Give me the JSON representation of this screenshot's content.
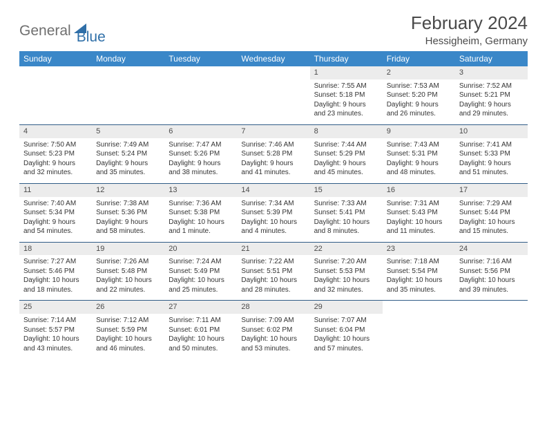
{
  "brand": {
    "part1": "General",
    "part2": "Blue"
  },
  "title": {
    "month": "February 2024",
    "location": "Hessigheim, Germany"
  },
  "colors": {
    "header_bg": "#3a87c8",
    "row_border": "#2f5b86",
    "daynum_bg": "#ececec",
    "text": "#333333",
    "brand_gray": "#6f6f6f",
    "brand_blue": "#2f6fa8"
  },
  "weekdays": [
    "Sunday",
    "Monday",
    "Tuesday",
    "Wednesday",
    "Thursday",
    "Friday",
    "Saturday"
  ],
  "weeks": [
    [
      {
        "empty": true
      },
      {
        "empty": true
      },
      {
        "empty": true
      },
      {
        "empty": true
      },
      {
        "day": "1",
        "sunrise": "Sunrise: 7:55 AM",
        "sunset": "Sunset: 5:18 PM",
        "daylight": "Daylight: 9 hours and 23 minutes."
      },
      {
        "day": "2",
        "sunrise": "Sunrise: 7:53 AM",
        "sunset": "Sunset: 5:20 PM",
        "daylight": "Daylight: 9 hours and 26 minutes."
      },
      {
        "day": "3",
        "sunrise": "Sunrise: 7:52 AM",
        "sunset": "Sunset: 5:21 PM",
        "daylight": "Daylight: 9 hours and 29 minutes."
      }
    ],
    [
      {
        "day": "4",
        "sunrise": "Sunrise: 7:50 AM",
        "sunset": "Sunset: 5:23 PM",
        "daylight": "Daylight: 9 hours and 32 minutes."
      },
      {
        "day": "5",
        "sunrise": "Sunrise: 7:49 AM",
        "sunset": "Sunset: 5:24 PM",
        "daylight": "Daylight: 9 hours and 35 minutes."
      },
      {
        "day": "6",
        "sunrise": "Sunrise: 7:47 AM",
        "sunset": "Sunset: 5:26 PM",
        "daylight": "Daylight: 9 hours and 38 minutes."
      },
      {
        "day": "7",
        "sunrise": "Sunrise: 7:46 AM",
        "sunset": "Sunset: 5:28 PM",
        "daylight": "Daylight: 9 hours and 41 minutes."
      },
      {
        "day": "8",
        "sunrise": "Sunrise: 7:44 AM",
        "sunset": "Sunset: 5:29 PM",
        "daylight": "Daylight: 9 hours and 45 minutes."
      },
      {
        "day": "9",
        "sunrise": "Sunrise: 7:43 AM",
        "sunset": "Sunset: 5:31 PM",
        "daylight": "Daylight: 9 hours and 48 minutes."
      },
      {
        "day": "10",
        "sunrise": "Sunrise: 7:41 AM",
        "sunset": "Sunset: 5:33 PM",
        "daylight": "Daylight: 9 hours and 51 minutes."
      }
    ],
    [
      {
        "day": "11",
        "sunrise": "Sunrise: 7:40 AM",
        "sunset": "Sunset: 5:34 PM",
        "daylight": "Daylight: 9 hours and 54 minutes."
      },
      {
        "day": "12",
        "sunrise": "Sunrise: 7:38 AM",
        "sunset": "Sunset: 5:36 PM",
        "daylight": "Daylight: 9 hours and 58 minutes."
      },
      {
        "day": "13",
        "sunrise": "Sunrise: 7:36 AM",
        "sunset": "Sunset: 5:38 PM",
        "daylight": "Daylight: 10 hours and 1 minute."
      },
      {
        "day": "14",
        "sunrise": "Sunrise: 7:34 AM",
        "sunset": "Sunset: 5:39 PM",
        "daylight": "Daylight: 10 hours and 4 minutes."
      },
      {
        "day": "15",
        "sunrise": "Sunrise: 7:33 AM",
        "sunset": "Sunset: 5:41 PM",
        "daylight": "Daylight: 10 hours and 8 minutes."
      },
      {
        "day": "16",
        "sunrise": "Sunrise: 7:31 AM",
        "sunset": "Sunset: 5:43 PM",
        "daylight": "Daylight: 10 hours and 11 minutes."
      },
      {
        "day": "17",
        "sunrise": "Sunrise: 7:29 AM",
        "sunset": "Sunset: 5:44 PM",
        "daylight": "Daylight: 10 hours and 15 minutes."
      }
    ],
    [
      {
        "day": "18",
        "sunrise": "Sunrise: 7:27 AM",
        "sunset": "Sunset: 5:46 PM",
        "daylight": "Daylight: 10 hours and 18 minutes."
      },
      {
        "day": "19",
        "sunrise": "Sunrise: 7:26 AM",
        "sunset": "Sunset: 5:48 PM",
        "daylight": "Daylight: 10 hours and 22 minutes."
      },
      {
        "day": "20",
        "sunrise": "Sunrise: 7:24 AM",
        "sunset": "Sunset: 5:49 PM",
        "daylight": "Daylight: 10 hours and 25 minutes."
      },
      {
        "day": "21",
        "sunrise": "Sunrise: 7:22 AM",
        "sunset": "Sunset: 5:51 PM",
        "daylight": "Daylight: 10 hours and 28 minutes."
      },
      {
        "day": "22",
        "sunrise": "Sunrise: 7:20 AM",
        "sunset": "Sunset: 5:53 PM",
        "daylight": "Daylight: 10 hours and 32 minutes."
      },
      {
        "day": "23",
        "sunrise": "Sunrise: 7:18 AM",
        "sunset": "Sunset: 5:54 PM",
        "daylight": "Daylight: 10 hours and 35 minutes."
      },
      {
        "day": "24",
        "sunrise": "Sunrise: 7:16 AM",
        "sunset": "Sunset: 5:56 PM",
        "daylight": "Daylight: 10 hours and 39 minutes."
      }
    ],
    [
      {
        "day": "25",
        "sunrise": "Sunrise: 7:14 AM",
        "sunset": "Sunset: 5:57 PM",
        "daylight": "Daylight: 10 hours and 43 minutes."
      },
      {
        "day": "26",
        "sunrise": "Sunrise: 7:12 AM",
        "sunset": "Sunset: 5:59 PM",
        "daylight": "Daylight: 10 hours and 46 minutes."
      },
      {
        "day": "27",
        "sunrise": "Sunrise: 7:11 AM",
        "sunset": "Sunset: 6:01 PM",
        "daylight": "Daylight: 10 hours and 50 minutes."
      },
      {
        "day": "28",
        "sunrise": "Sunrise: 7:09 AM",
        "sunset": "Sunset: 6:02 PM",
        "daylight": "Daylight: 10 hours and 53 minutes."
      },
      {
        "day": "29",
        "sunrise": "Sunrise: 7:07 AM",
        "sunset": "Sunset: 6:04 PM",
        "daylight": "Daylight: 10 hours and 57 minutes."
      },
      {
        "empty": true
      },
      {
        "empty": true
      }
    ]
  ]
}
